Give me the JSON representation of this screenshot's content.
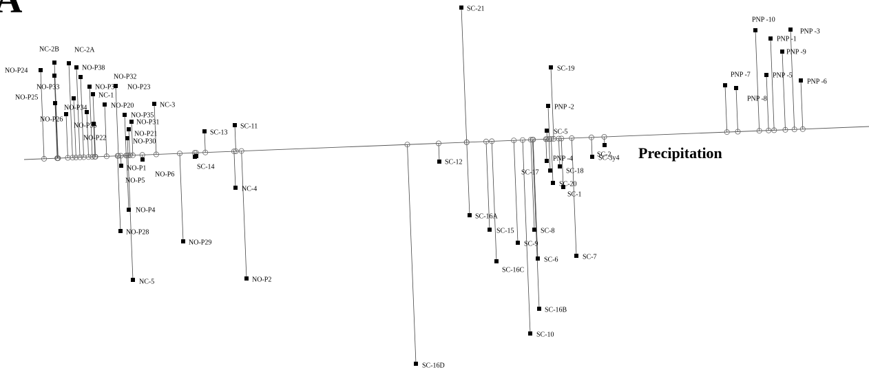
{
  "chart_data": {
    "type": "scatter",
    "panel_label": "A",
    "axis_title": "Precipitation",
    "marker": "filled square",
    "projection_marker": "open circle",
    "points": [
      {
        "name": "NO-P24"
      },
      {
        "name": "NC-2B"
      },
      {
        "name": "NC-2A"
      },
      {
        "name": "NO-P38"
      },
      {
        "name": "NO-P33"
      },
      {
        "name": "NO-P32"
      },
      {
        "name": "NO-P37"
      },
      {
        "name": "NO-P23"
      },
      {
        "name": "NO-P25"
      },
      {
        "name": "NC-1"
      },
      {
        "name": "NO-P34"
      },
      {
        "name": "NO-P20"
      },
      {
        "name": "NC-3"
      },
      {
        "name": "NO-P35"
      },
      {
        "name": "NO-P26"
      },
      {
        "name": "NO-P31"
      },
      {
        "name": "NO-P36"
      },
      {
        "name": "NO-P21"
      },
      {
        "name": "NO-P22"
      },
      {
        "name": "NO-P30"
      },
      {
        "name": "NO-P1"
      },
      {
        "name": "NO-P5"
      },
      {
        "name": "NO-P6"
      },
      {
        "name": "NO-P4"
      },
      {
        "name": "NO-P28"
      },
      {
        "name": "NO-P29"
      },
      {
        "name": "NC-5"
      },
      {
        "name": "NO-P2"
      },
      {
        "name": "SC-13"
      },
      {
        "name": "SC-11"
      },
      {
        "name": "SC-14"
      },
      {
        "name": "NC-4"
      },
      {
        "name": "SC-21"
      },
      {
        "name": "SC-12"
      },
      {
        "name": "SC-16A"
      },
      {
        "name": "SC-15"
      },
      {
        "name": "SC-9"
      },
      {
        "name": "SC-16C"
      },
      {
        "name": "SC-6"
      },
      {
        "name": "SC-8"
      },
      {
        "name": "SC-7"
      },
      {
        "name": "SC-16B"
      },
      {
        "name": "SC-10"
      },
      {
        "name": "SC-16D"
      },
      {
        "name": "SC-19"
      },
      {
        "name": "PNP -2"
      },
      {
        "name": "SC-5"
      },
      {
        "name": "SC-2"
      },
      {
        "name": "SC-3y4"
      },
      {
        "name": "PNP -4"
      },
      {
        "name": "SC-18"
      },
      {
        "name": "SC-17"
      },
      {
        "name": "SC-20"
      },
      {
        "name": "SC-1"
      },
      {
        "name": "PNP -10"
      },
      {
        "name": "PNP -3"
      },
      {
        "name": "PNP -1"
      },
      {
        "name": "PNP -9"
      },
      {
        "name": "PNP -7"
      },
      {
        "name": "PNP -5"
      },
      {
        "name": "PNP -6"
      },
      {
        "name": "PNP -8"
      }
    ]
  }
}
